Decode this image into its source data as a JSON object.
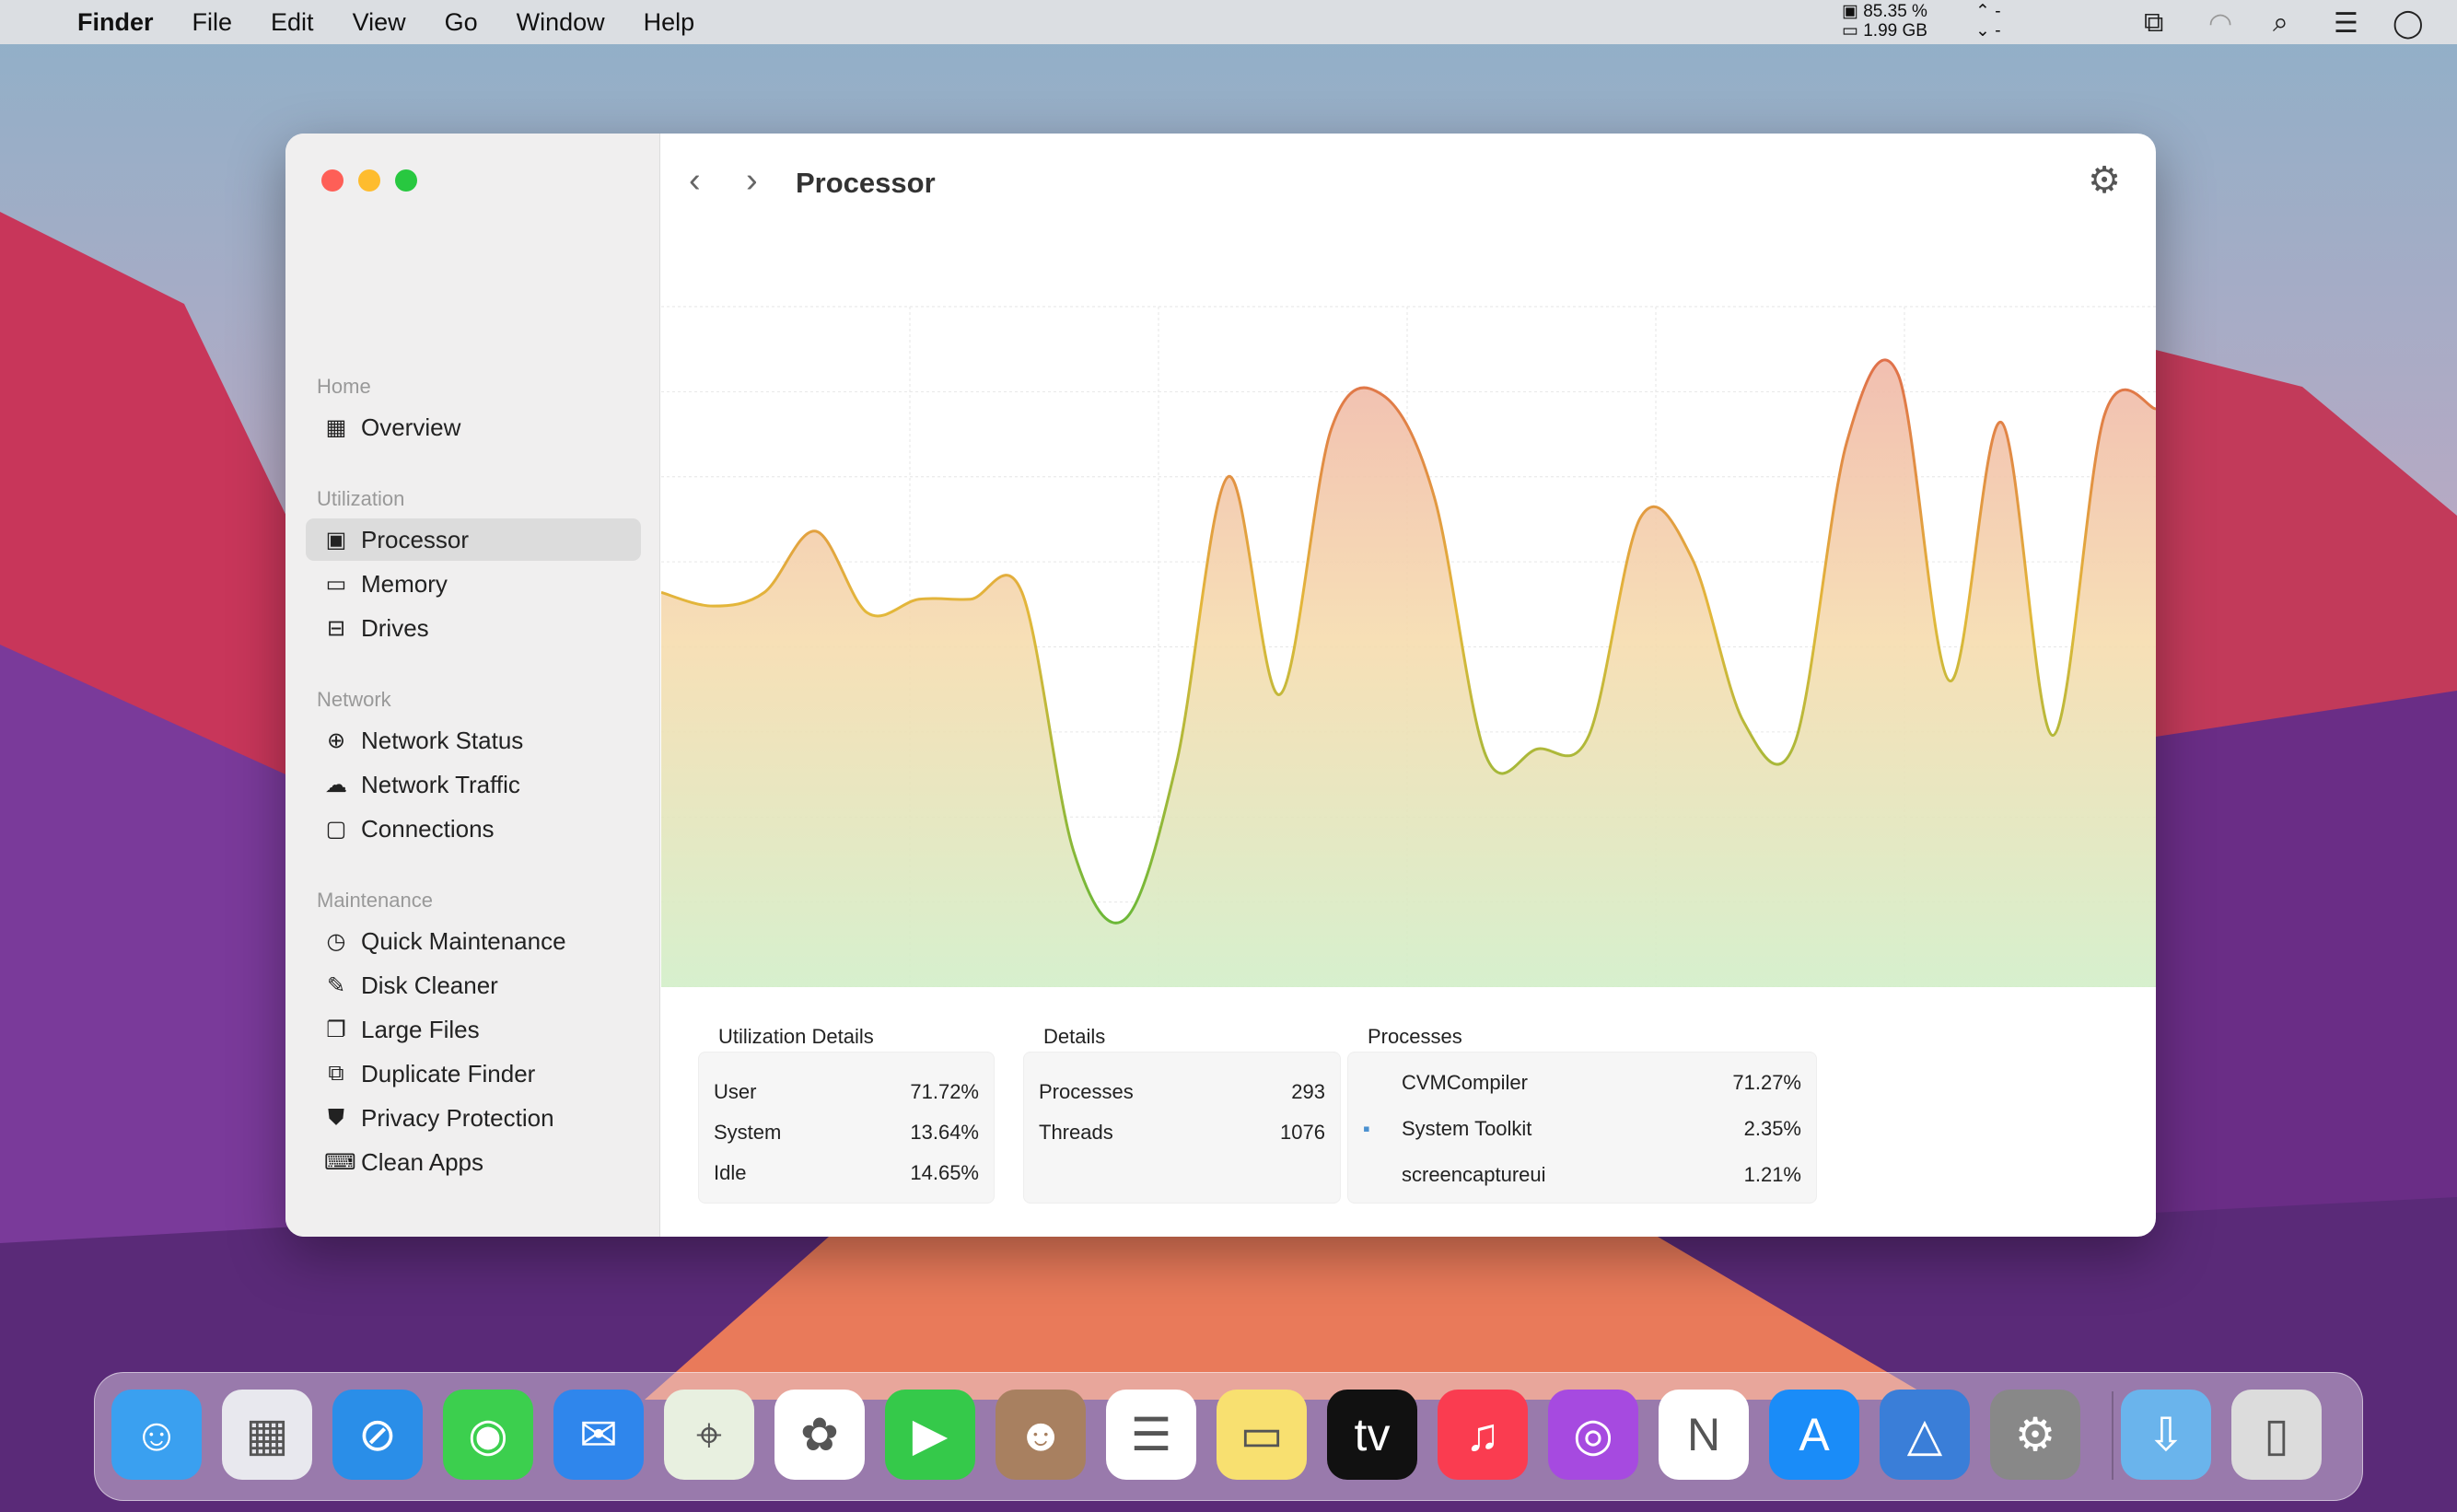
{
  "menubar": {
    "app": "Finder",
    "items": [
      "File",
      "Edit",
      "View",
      "Go",
      "Window",
      "Help"
    ],
    "cpu": "85.35 %",
    "memory": "1.99 GB",
    "net_up": "-",
    "net_down": "-"
  },
  "sidebar": {
    "sections": [
      {
        "title": "Home",
        "items": [
          {
            "label": "Overview",
            "icon": "grid-icon"
          }
        ]
      },
      {
        "title": "Utilization",
        "items": [
          {
            "label": "Processor",
            "icon": "cpu-icon",
            "selected": true
          },
          {
            "label": "Memory",
            "icon": "memory-icon"
          },
          {
            "label": "Drives",
            "icon": "drive-icon"
          }
        ]
      },
      {
        "title": "Network",
        "items": [
          {
            "label": "Network Status",
            "icon": "globe-icon"
          },
          {
            "label": "Network Traffic",
            "icon": "cloud-icon"
          },
          {
            "label": "Connections",
            "icon": "monitor-icon"
          }
        ]
      },
      {
        "title": "Maintenance",
        "items": [
          {
            "label": "Quick Maintenance",
            "icon": "timer-icon"
          },
          {
            "label": "Disk Cleaner",
            "icon": "broom-icon"
          },
          {
            "label": "Large Files",
            "icon": "files-icon"
          },
          {
            "label": "Duplicate Finder",
            "icon": "duplicate-icon"
          },
          {
            "label": "Privacy Protection",
            "icon": "shield-icon"
          },
          {
            "label": "Clean Apps",
            "icon": "apps-icon"
          }
        ]
      }
    ]
  },
  "header": {
    "title": "Processor"
  },
  "chart_data": {
    "type": "area",
    "title": "",
    "xlabel": "",
    "ylabel": "",
    "ylim": [
      0,
      100
    ],
    "grid": true,
    "values": [
      58,
      56,
      58,
      67,
      55,
      57,
      57,
      58,
      20,
      10,
      33,
      75,
      43,
      82,
      87,
      72,
      34,
      35,
      37,
      69,
      63,
      39,
      36,
      80,
      90,
      45,
      83,
      37,
      84,
      85
    ]
  },
  "utilization": {
    "title": "Utilization Details",
    "rows": [
      {
        "label": "User",
        "value": "71.72%"
      },
      {
        "label": "System",
        "value": "13.64%"
      },
      {
        "label": "Idle",
        "value": "14.65%"
      }
    ]
  },
  "details": {
    "title": "Details",
    "rows": [
      {
        "label": "Processes",
        "value": "293"
      },
      {
        "label": "Threads",
        "value": "1076"
      }
    ]
  },
  "processes": {
    "title": "Processes",
    "rows": [
      {
        "label": "CVMCompiler",
        "value": "71.27%"
      },
      {
        "label": "System Toolkit",
        "value": "2.35%"
      },
      {
        "label": "screencaptureui",
        "value": "1.21%"
      }
    ]
  },
  "dock": [
    "Finder",
    "Launchpad",
    "Safari",
    "Messages",
    "Mail",
    "Maps",
    "Photos",
    "FaceTime",
    "Contacts",
    "Reminders",
    "Notes",
    "TV",
    "Music",
    "Podcasts",
    "News",
    "App Store",
    "System Toolkit",
    "System Preferences",
    "Downloads",
    "Trash"
  ],
  "colors": {
    "accent_high": "#e8734a",
    "accent_mid": "#e8c03a",
    "accent_low": "#7cc04a"
  }
}
